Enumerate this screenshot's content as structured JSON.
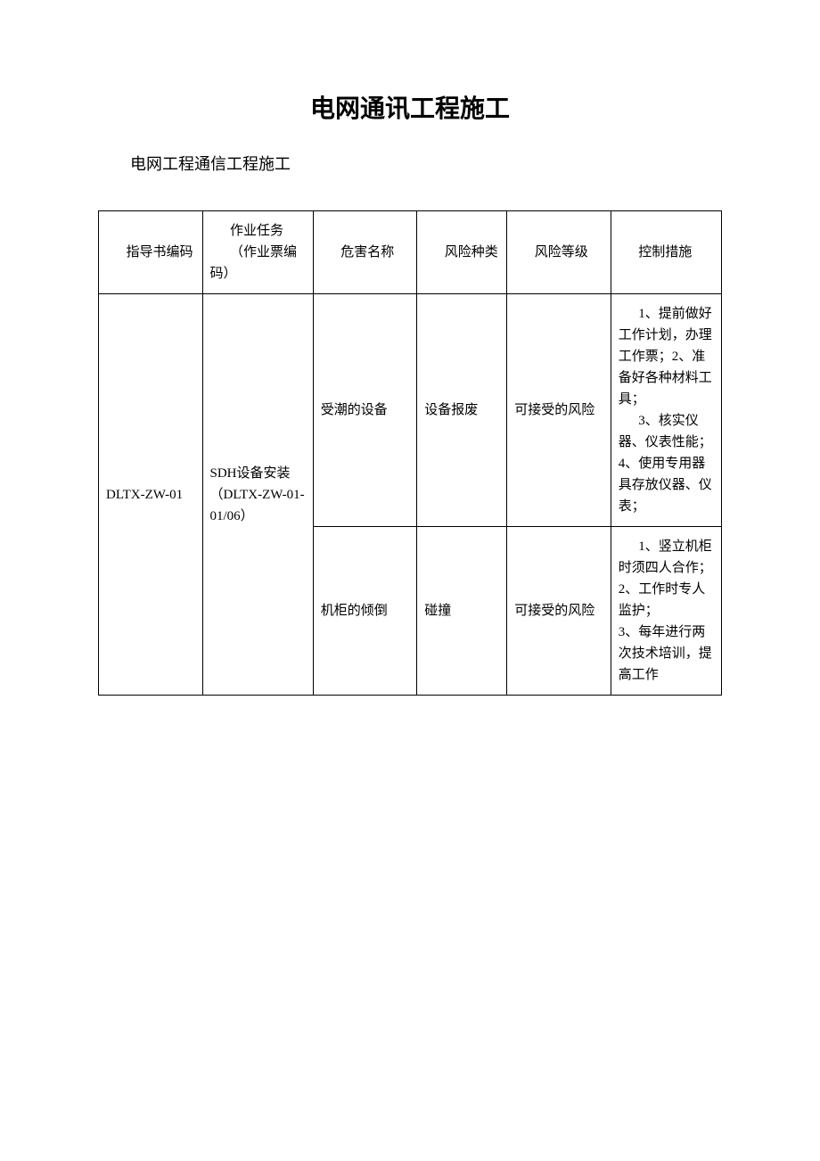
{
  "watermark": "",
  "title": "电网通讯工程施工",
  "subtitle": "电网工程通信工程施工",
  "table": {
    "headers": [
      "指导书编码",
      "作业任务\n（作业票编码）",
      "危害名称",
      "风险种类",
      "风险等级",
      "控制措施"
    ],
    "col1": "DLTX-ZW-01",
    "col2": "SDH设备安装（DLTX-ZW-01-01/06）",
    "row1": {
      "hazard": "受潮的设备",
      "risk_type": "设备报废",
      "risk_level": "可接受的风险",
      "control_p1": "1、提前做好工作计划，办理工作票；2、准备好各种材料工具；",
      "control_p2": "3、核实仪器、仪表性能；",
      "control_p3": "4、使用专用器具存放仪器、仪表；"
    },
    "row2": {
      "hazard": "机柜的倾倒",
      "risk_type": "碰撞",
      "risk_level": "可接受的风险",
      "control_p1": "1、竖立机柜时须四人合作；",
      "control_p2": "2、工作时专人监护；",
      "control_p3": "3、每年进行两次技术培训，提高工作"
    }
  },
  "colors": {
    "background": "#ffffff",
    "text": "#000000",
    "border": "#000000",
    "watermark": "#f0f0f0"
  }
}
